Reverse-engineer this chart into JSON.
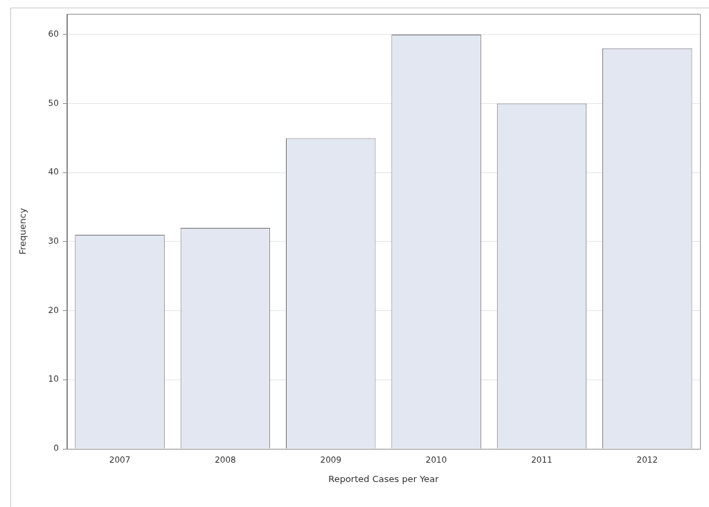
{
  "chart_data": {
    "type": "bar",
    "xlabel": "Reported Cases per Year",
    "ylabel": "Frequency",
    "categories": [
      "2007",
      "2008",
      "2009",
      "2010",
      "2011",
      "2012"
    ],
    "values": [
      31,
      32,
      45,
      60,
      50,
      58
    ],
    "color": "#e3e7f1",
    "ylim": [
      0,
      63
    ],
    "yticks": [
      0,
      10,
      20,
      30,
      40,
      50,
      60
    ],
    "grid": "y",
    "legend": false
  }
}
